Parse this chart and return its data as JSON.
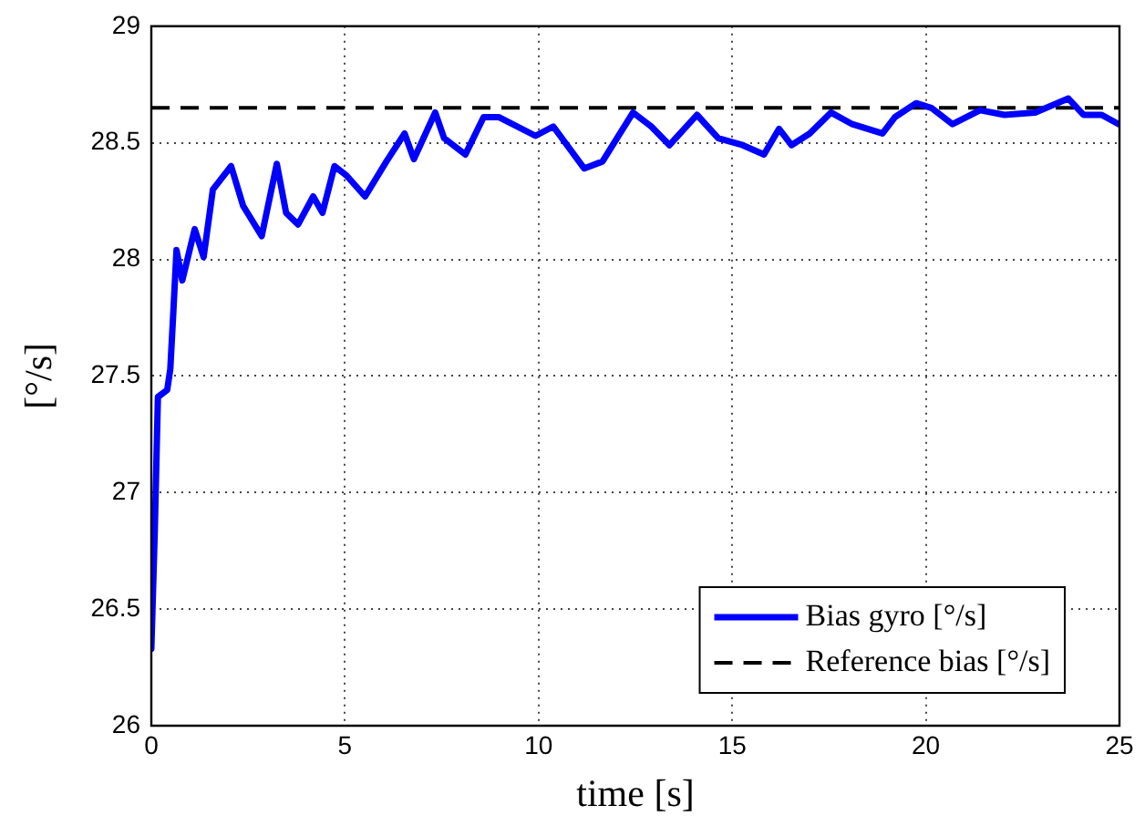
{
  "chart_data": {
    "type": "line",
    "xlabel": "time [s]",
    "ylabel": "[°/s]",
    "xlim": [
      0,
      25
    ],
    "xticks": [
      0,
      5,
      10,
      15,
      20,
      25
    ],
    "ylim": [
      26,
      29
    ],
    "yticks": [
      26,
      26.5,
      27,
      27.5,
      28,
      28.5,
      29
    ],
    "grid": true,
    "legend": "bottom right",
    "marker": "none",
    "line_style": "solid",
    "series": [
      {
        "name": "Bias gyro [°/s]",
        "color": "#0000ff",
        "x": [
          0,
          0.09,
          0.17,
          0.41,
          0.49,
          0.57,
          0.65,
          0.8,
          1.12,
          1.35,
          1.59,
          2.06,
          2.37,
          2.85,
          3.24,
          3.48,
          3.79,
          4.18,
          4.42,
          4.73,
          5.04,
          5.52,
          6.07,
          6.54,
          6.78,
          7.33,
          7.56,
          8.11,
          8.58,
          8.98,
          9.92,
          10.38,
          11.18,
          11.65,
          12.44,
          12.91,
          13.38,
          14.09,
          14.64,
          15.27,
          15.82,
          16.21,
          16.53,
          17.0,
          17.55,
          18.1,
          18.88,
          19.2,
          19.75,
          20.14,
          20.69,
          21.4,
          22.03,
          22.82,
          23.68,
          24.07,
          24.54,
          24.98
        ],
        "values": [
          26.33,
          26.84,
          27.41,
          27.44,
          27.53,
          27.78,
          28.04,
          27.91,
          28.13,
          28.01,
          28.3,
          28.4,
          28.23,
          28.1,
          28.41,
          28.2,
          28.15,
          28.27,
          28.2,
          28.4,
          28.36,
          28.27,
          28.42,
          28.54,
          28.43,
          28.63,
          28.52,
          28.45,
          28.61,
          28.61,
          28.53,
          28.57,
          28.39,
          28.42,
          28.63,
          28.57,
          28.49,
          28.62,
          28.52,
          28.49,
          28.45,
          28.56,
          28.49,
          28.54,
          28.63,
          28.58,
          28.54,
          28.61,
          28.67,
          28.65,
          28.58,
          28.64,
          28.62,
          28.63,
          28.69,
          28.62,
          28.62,
          28.58
        ]
      }
    ],
    "ref_lines": [
      {
        "axis": "y",
        "value": 28.65,
        "label": "Reference bias [°/s]",
        "color": "#000000",
        "line_style": "dashed"
      }
    ]
  }
}
